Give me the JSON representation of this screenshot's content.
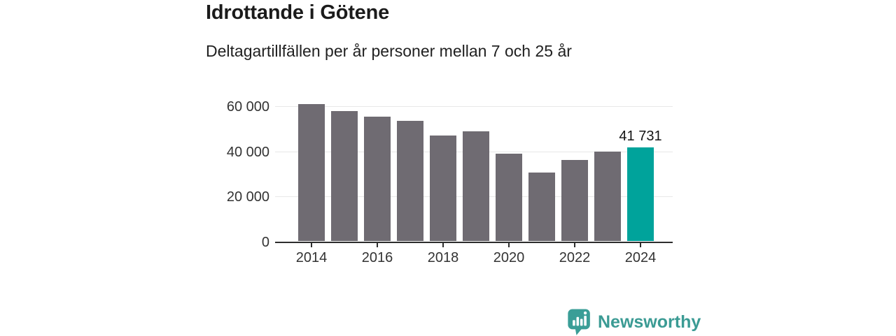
{
  "header": {
    "title": "Idrottande i Götene",
    "subtitle": "Deltagartillfällen per år personer mellan 7 och 25 år"
  },
  "chart_data": {
    "type": "bar",
    "title": "Idrottande i Götene",
    "subtitle": "Deltagartillfällen per år personer mellan 7 och 25 år",
    "categories": [
      "2014",
      "2015",
      "2016",
      "2017",
      "2018",
      "2019",
      "2020",
      "2021",
      "2022",
      "2023",
      "2024"
    ],
    "values": [
      61000,
      57800,
      55400,
      53700,
      47100,
      48800,
      39000,
      30700,
      36300,
      40000,
      41731
    ],
    "highlight_index": 10,
    "highlight_value_label": "41 731",
    "yticks": [
      0,
      20000,
      40000,
      60000
    ],
    "ytick_labels": [
      "0",
      "20 000",
      "40 000",
      "60 000"
    ],
    "xtick_labels": [
      "2014",
      "2016",
      "2018",
      "2020",
      "2022",
      "2024"
    ],
    "ylim": [
      0,
      62000
    ],
    "grid": true,
    "legend": "none",
    "xlabel": "",
    "ylabel": "",
    "bar_color": "#6f6b72",
    "highlight_color": "#00a39b",
    "gridline_color": "#e8e8e8",
    "axis_color": "#2d2d2d",
    "tick_label_color": "#333333"
  },
  "footer": {
    "brand": "Newsworthy",
    "brand_color": "#3b9b94",
    "logo_icon": "bar-chart-speech-bubble-icon"
  }
}
